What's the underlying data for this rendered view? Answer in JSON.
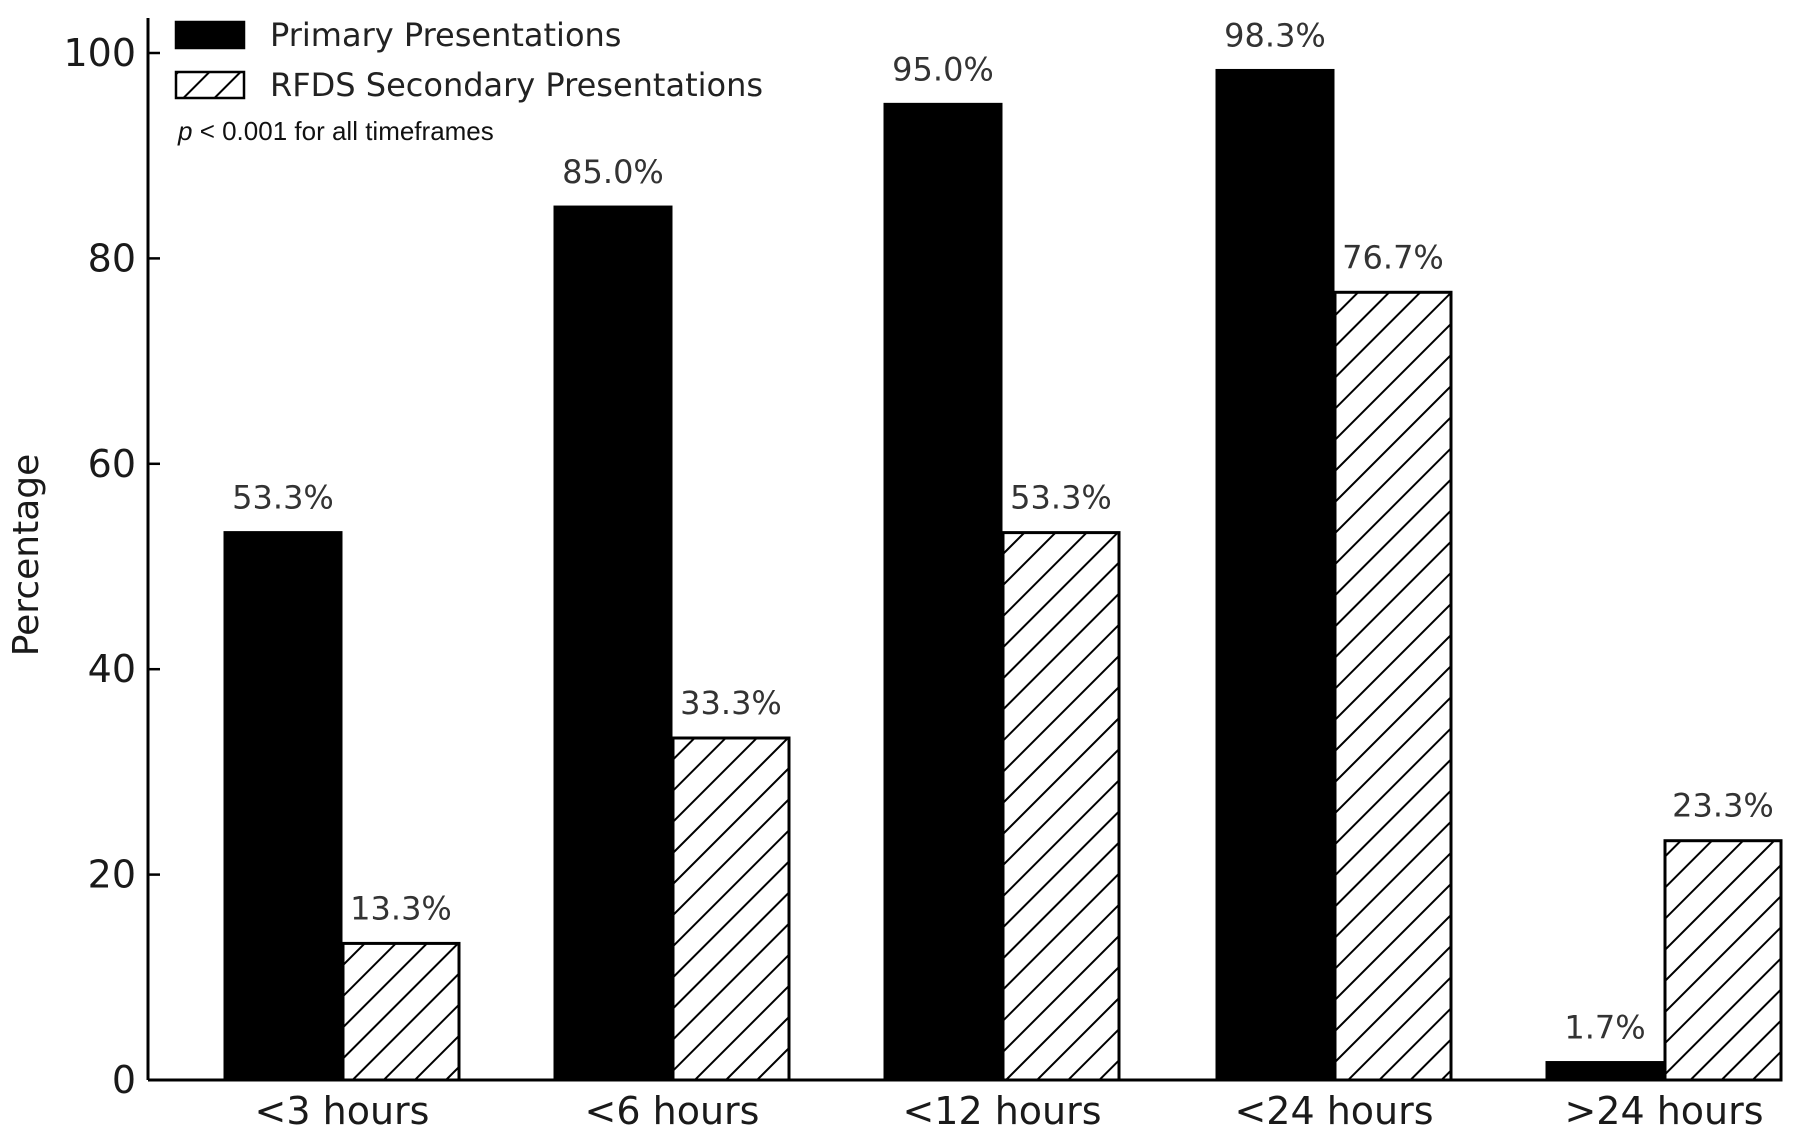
{
  "chart_data": {
    "type": "bar",
    "categories": [
      "<3 hours",
      "<6 hours",
      "<12 hours",
      "<24 hours",
      ">24 hours"
    ],
    "series": [
      {
        "name": "Primary Presentations",
        "values": [
          53.3,
          85.0,
          95.0,
          98.3,
          1.7
        ],
        "labels": [
          "53.3%",
          "85.0%",
          "95.0%",
          "98.3%",
          "1.7%"
        ],
        "fill": "solid",
        "color": "#000000"
      },
      {
        "name": "RFDS Secondary Presentations",
        "values": [
          13.3,
          33.3,
          53.3,
          76.7,
          23.3
        ],
        "labels": [
          "13.3%",
          "33.3%",
          "53.3%",
          "76.7%",
          "23.3%"
        ],
        "fill": "hatched",
        "color": "#000000"
      }
    ],
    "title": "",
    "xlabel": "",
    "ylabel": "Percentage",
    "ylim": [
      0,
      100
    ],
    "yticks": [
      0,
      20,
      40,
      60,
      80,
      100
    ],
    "ytick_labels": [
      "0",
      "20",
      "40",
      "60",
      "80",
      "100"
    ],
    "grid": false,
    "legend_position": "top-left",
    "annotation": {
      "italic_part": "p",
      "rest": " < 0.001 for all timeframes"
    }
  }
}
